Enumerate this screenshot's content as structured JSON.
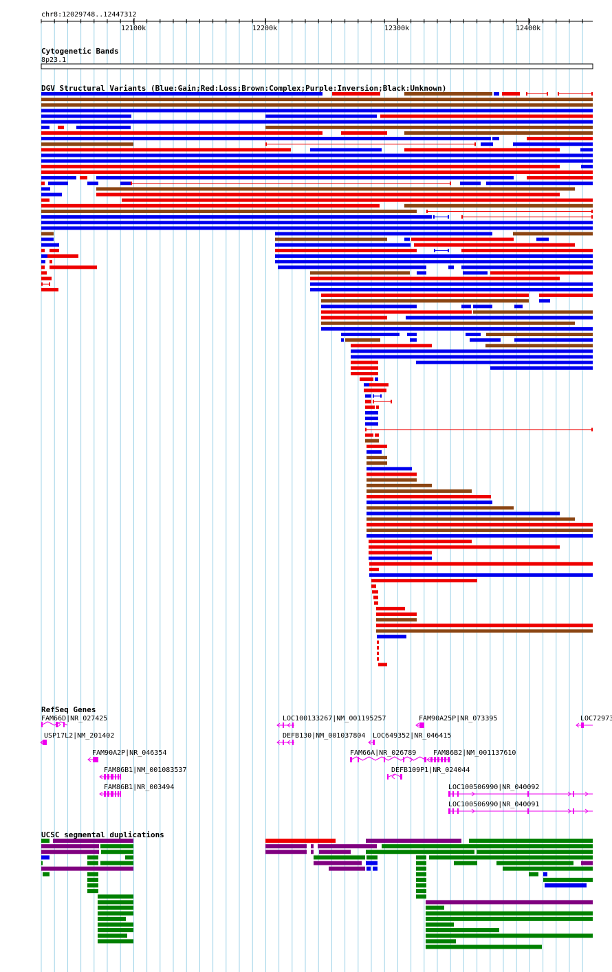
{
  "position": "chr8:12029748..12447312",
  "ruler": {
    "ticks": [
      {
        "pos": 12100000,
        "label": "12100k"
      },
      {
        "pos": 12200000,
        "label": "12200k"
      },
      {
        "pos": 12300000,
        "label": "12300k"
      },
      {
        "pos": 12400000,
        "label": "12400k"
      }
    ]
  },
  "colors": {
    "gain": "#0000ee",
    "loss": "#ee0000",
    "complex": "#8b4513",
    "inversion": "#800080",
    "unknown": "#000000",
    "gene": "#ee00ee",
    "segdup_green": "#008000",
    "grid": "#9fd3e8"
  },
  "tracks": {
    "cytoband": {
      "title": "Cytogenetic Bands",
      "band": "8p23.1"
    },
    "dgv": {
      "title": "DGV Structural Variants (Blue:Gain;Red:Loss;Brown:Complex;Purple:Inversion;Black:Unknown)"
    },
    "refseq": {
      "title": "RefSeq Genes",
      "genes": [
        {
          "label": "FAM66D|NR_027425"
        },
        {
          "label": "USP17L2|NM_201402"
        },
        {
          "label": "FAM90A2P|NR_046354"
        },
        {
          "label": "FAM86B1|NM_001083537"
        },
        {
          "label": "FAM86B1|NR_003494"
        },
        {
          "label": "LOC100133267|NM_001195257"
        },
        {
          "label": "DEFB130|NM_001037804"
        },
        {
          "label": "FAM90A25P|NR_073395"
        },
        {
          "label": "LOC649352|NR_046415"
        },
        {
          "label": "FAM66A|NR_026789"
        },
        {
          "label": "FAM86B2|NM_001137610"
        },
        {
          "label": "DEFB109P1|NR_024044"
        },
        {
          "label": "LOC100506990|NR_040092"
        },
        {
          "label": "LOC100506990|NR_040091"
        },
        {
          "label": "LOC72973"
        }
      ]
    },
    "segdup": {
      "title": "UCSC segmental duplications"
    }
  }
}
